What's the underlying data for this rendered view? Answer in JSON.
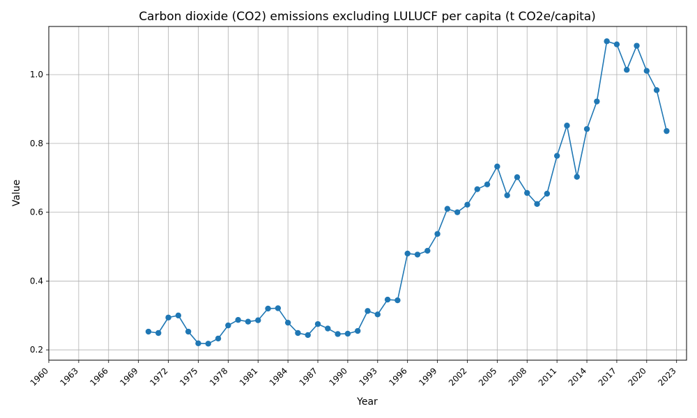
{
  "chart_data": {
    "type": "line",
    "title": "Carbon dioxide (CO2) emissions excluding LULUCF per capita (t CO2e/capita)",
    "xlabel": "Year",
    "ylabel": "Value",
    "xlim": [
      1960,
      2024
    ],
    "ylim": [
      0.17,
      1.14
    ],
    "x_ticks": [
      1960,
      1963,
      1966,
      1969,
      1972,
      1975,
      1978,
      1981,
      1984,
      1987,
      1990,
      1993,
      1996,
      1999,
      2002,
      2005,
      2008,
      2011,
      2014,
      2017,
      2020,
      2023
    ],
    "y_ticks": [
      0.2,
      0.4,
      0.6,
      0.8,
      1.0
    ],
    "y_tick_labels": [
      "0.2",
      "0.4",
      "0.6",
      "0.8",
      "1.0"
    ],
    "grid": true,
    "markers": "circle",
    "series": [
      {
        "color": "#1f77b4",
        "x": [
          1970,
          1971,
          1972,
          1973,
          1974,
          1975,
          1976,
          1977,
          1978,
          1979,
          1980,
          1981,
          1982,
          1983,
          1984,
          1985,
          1986,
          1987,
          1988,
          1989,
          1990,
          1991,
          1992,
          1993,
          1994,
          1995,
          1996,
          1997,
          1998,
          1999,
          2000,
          2001,
          2002,
          2003,
          2004,
          2005,
          2006,
          2007,
          2008,
          2009,
          2010,
          2011,
          2012,
          2013,
          2014,
          2015,
          2016,
          2017,
          2018,
          2019,
          2020,
          2021,
          2022
        ],
        "values": [
          0.253,
          0.249,
          0.294,
          0.3,
          0.253,
          0.219,
          0.218,
          0.233,
          0.271,
          0.287,
          0.282,
          0.286,
          0.32,
          0.321,
          0.279,
          0.249,
          0.243,
          0.275,
          0.262,
          0.246,
          0.247,
          0.255,
          0.313,
          0.303,
          0.346,
          0.344,
          0.48,
          0.477,
          0.488,
          0.537,
          0.61,
          0.6,
          0.622,
          0.667,
          0.681,
          0.733,
          0.649,
          0.702,
          0.656,
          0.624,
          0.654,
          0.764,
          0.852,
          0.703,
          0.842,
          0.922,
          1.097,
          1.088,
          1.014,
          1.084,
          1.011,
          0.955,
          0.836
        ]
      }
    ]
  }
}
